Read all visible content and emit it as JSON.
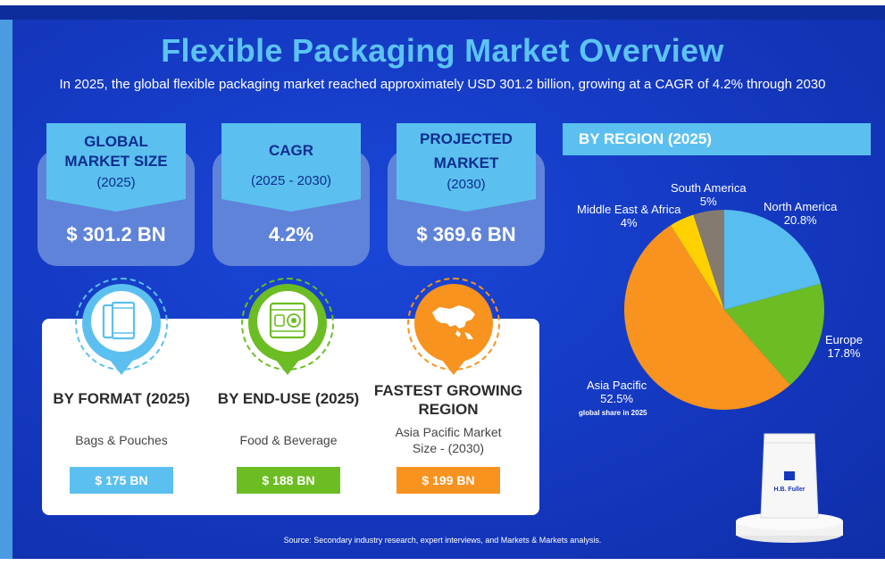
{
  "title": "Flexible Packaging Market Overview",
  "subtitle": "In 2025, the global flexible packaging market reached approximately USD 301.2 billion, growing at a CAGR of 4.2% through 2030",
  "stats": [
    {
      "line1": "GLOBAL",
      "line2": "MARKET SIZE",
      "sub": "(2025)",
      "value": "$ 301.2 BN"
    },
    {
      "line1": "CAGR",
      "line2": "",
      "sub": "(2025 - 2030)",
      "value": "4.2%"
    },
    {
      "line1": "PROJECTED",
      "line2": "MARKET",
      "sub": "(2030)",
      "value": "$ 369.6 BN"
    }
  ],
  "segments": [
    {
      "heading": "BY FORMAT (2025)",
      "heading2": "",
      "detail": "Bags & Pouches",
      "detail2": "",
      "value": "$ 175 BN",
      "color": "#5bc0ef",
      "icon": "pouch-icon"
    },
    {
      "heading": "BY END-USE (2025)",
      "heading2": "",
      "detail": "Food & Beverage",
      "detail2": "",
      "value": "$ 188 BN",
      "color": "#6cbd23",
      "icon": "food-package-icon"
    },
    {
      "heading": "FASTEST GROWING",
      "heading2": "REGION",
      "detail": "Asia Pacific Market",
      "detail2": "Size  - (2030)",
      "value": "$ 199 BN",
      "color": "#f7931e",
      "icon": "asia-map-icon"
    }
  ],
  "region_title": "BY REGION (2025)",
  "chart_note": "global share in 2025",
  "source": "Source: Secondary industry research, expert interviews, and Markets & Markets analysis.",
  "brand": "H.B. Fuller",
  "chart_data": {
    "type": "pie",
    "title": "BY REGION (2025)",
    "slices": [
      {
        "label": "North America",
        "value": 20.8,
        "display": "20.8%",
        "color": "#58bdf0"
      },
      {
        "label": "Europe",
        "value": 17.8,
        "display": "17.8%",
        "color": "#6cbd23"
      },
      {
        "label": "Asia Pacific",
        "value": 52.5,
        "display": "52.5%",
        "color": "#f7931e"
      },
      {
        "label": "Middle East & Africa",
        "value": 4,
        "display": "4%",
        "color": "#ffd100"
      },
      {
        "label": "South America",
        "value": 5,
        "display": "5%",
        "color": "#857a6f"
      }
    ]
  }
}
